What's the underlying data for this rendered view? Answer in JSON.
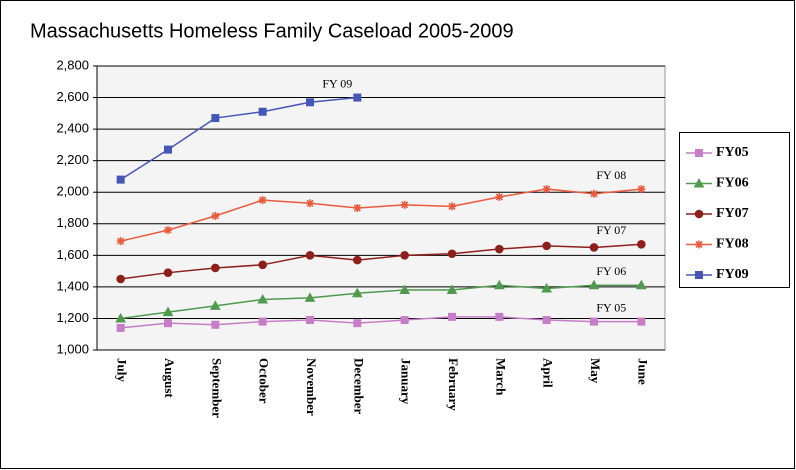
{
  "chart_data": {
    "type": "line",
    "title": "Massachusetts Homeless Family Caseload 2005-2009",
    "categories": [
      "July",
      "August",
      "September",
      "October",
      "November",
      "December",
      "January",
      "February",
      "March",
      "April",
      "May",
      "June"
    ],
    "ylim": [
      1000,
      2800
    ],
    "yticks": [
      {
        "value": 1000,
        "label": "1,000"
      },
      {
        "value": 1200,
        "label": "1,200"
      },
      {
        "value": 1400,
        "label": "1,400"
      },
      {
        "value": 1600,
        "label": "1,600"
      },
      {
        "value": 1800,
        "label": "1,800"
      },
      {
        "value": 2000,
        "label": "2,000"
      },
      {
        "value": 2200,
        "label": "2,200"
      },
      {
        "value": 2400,
        "label": "2,400"
      },
      {
        "value": 2600,
        "label": "2,600"
      },
      {
        "value": 2800,
        "label": "2,800"
      }
    ],
    "grid": true,
    "legend": "right",
    "series": [
      {
        "name": "FY05",
        "label": "FY 05",
        "color": "#c77cc7",
        "marker": "square",
        "values": [
          1140,
          1170,
          1160,
          1180,
          1190,
          1170,
          1190,
          1210,
          1210,
          1190,
          1180,
          1180
        ]
      },
      {
        "name": "FY06",
        "label": "FY 06",
        "color": "#4f9a4f",
        "marker": "triangle",
        "values": [
          1200,
          1240,
          1280,
          1320,
          1330,
          1360,
          1380,
          1380,
          1410,
          1390,
          1410,
          1410
        ]
      },
      {
        "name": "FY07",
        "label": "FY 07",
        "color": "#8e1f1a",
        "marker": "circle",
        "values": [
          1450,
          1490,
          1520,
          1540,
          1600,
          1570,
          1600,
          1610,
          1640,
          1660,
          1650,
          1670
        ]
      },
      {
        "name": "FY08",
        "label": "FY 08",
        "color": "#ea5a3c",
        "marker": "star",
        "values": [
          1690,
          1760,
          1850,
          1950,
          1930,
          1900,
          1920,
          1910,
          1970,
          2020,
          1990,
          2020
        ]
      },
      {
        "name": "FY09",
        "label": "FY 09",
        "color": "#4656b8",
        "marker": "square",
        "values": [
          2080,
          2270,
          2470,
          2510,
          2570,
          2600,
          null,
          null,
          null,
          null,
          null,
          null
        ]
      }
    ]
  }
}
